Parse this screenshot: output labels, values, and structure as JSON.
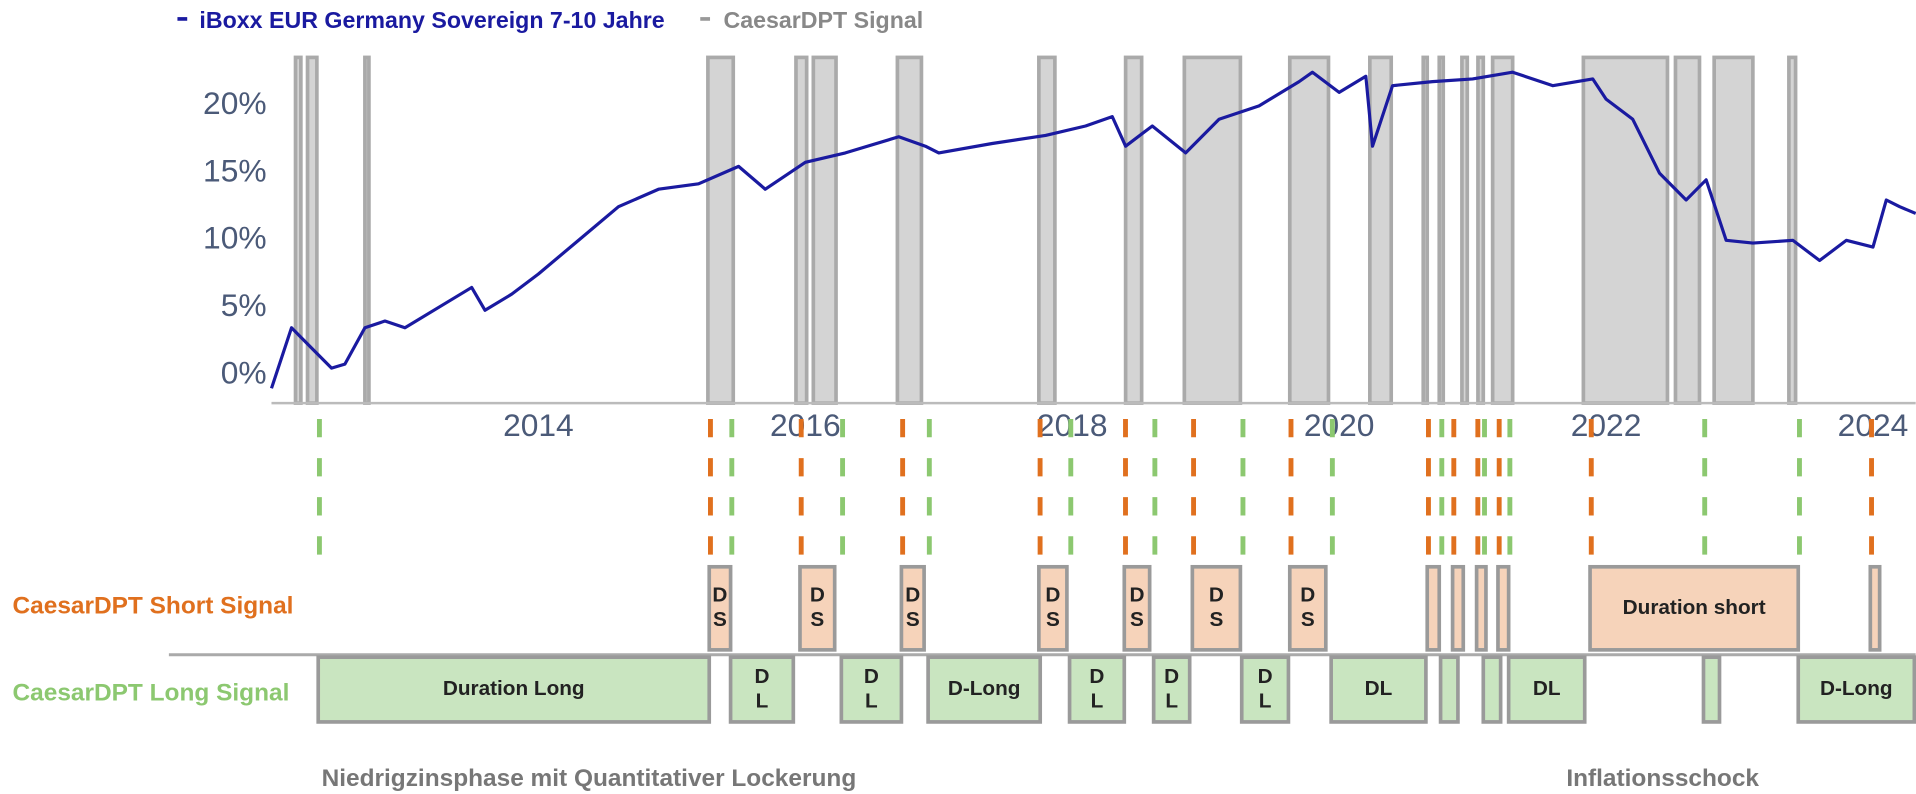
{
  "chart_data": {
    "type": "line",
    "series": [
      {
        "name": "iBoxx EUR Germany Sovereign 7-10 Jahre",
        "color": "#1a1aa0",
        "x": [
          2012.0,
          2012.15,
          2012.3,
          2012.45,
          2012.55,
          2012.7,
          2012.85,
          2013.0,
          2013.3,
          2013.5,
          2013.6,
          2013.8,
          2014.0,
          2014.3,
          2014.6,
          2014.9,
          2015.2,
          2015.5,
          2015.7,
          2016.0,
          2016.3,
          2016.7,
          2016.9,
          2017.0,
          2017.4,
          2017.8,
          2018.1,
          2018.3,
          2018.4,
          2018.6,
          2018.85,
          2019.1,
          2019.4,
          2019.7,
          2019.8,
          2020.0,
          2020.2,
          2020.25,
          2020.4,
          2020.7,
          2021.0,
          2021.3,
          2021.6,
          2021.9,
          2022.0,
          2022.2,
          2022.4,
          2022.6,
          2022.75,
          2022.9,
          2023.1,
          2023.4,
          2023.6,
          2023.8,
          2024.0,
          2024.1,
          2024.2,
          2024.32
        ],
        "values": [
          -1.0,
          3.5,
          2.0,
          0.5,
          0.8,
          3.5,
          4.0,
          3.5,
          5.3,
          6.5,
          4.8,
          6.0,
          7.5,
          10.0,
          12.5,
          13.8,
          14.2,
          15.5,
          13.8,
          15.8,
          16.5,
          17.7,
          17.0,
          16.5,
          17.2,
          17.8,
          18.5,
          19.2,
          17.0,
          18.5,
          16.5,
          19.0,
          20.0,
          21.8,
          22.5,
          21.0,
          22.2,
          17.0,
          21.5,
          21.8,
          22.0,
          22.5,
          21.5,
          22.0,
          20.5,
          19.0,
          15.0,
          13.0,
          14.5,
          10.0,
          9.8,
          10.0,
          8.5,
          10.0,
          9.5,
          13.0,
          12.5,
          12.0
        ]
      }
    ],
    "signal_name": "CaesarDPT Signal",
    "signal_color": "#aaaaaa",
    "signal_periods": [
      [
        2012.18,
        2012.22
      ],
      [
        2012.27,
        2012.34
      ],
      [
        2012.7,
        2012.73
      ],
      [
        2015.27,
        2015.46
      ],
      [
        2015.93,
        2016.01
      ],
      [
        2016.06,
        2016.23
      ],
      [
        2016.69,
        2016.87
      ],
      [
        2017.75,
        2017.87
      ],
      [
        2018.4,
        2018.52
      ],
      [
        2018.84,
        2019.26
      ],
      [
        2019.63,
        2019.92
      ],
      [
        2020.23,
        2020.39
      ],
      [
        2020.63,
        2020.66
      ],
      [
        2020.75,
        2020.78
      ],
      [
        2020.92,
        2020.96
      ],
      [
        2021.04,
        2021.08
      ],
      [
        2021.15,
        2021.3
      ],
      [
        2021.83,
        2022.46
      ],
      [
        2022.52,
        2022.7
      ],
      [
        2022.81,
        2023.1
      ],
      [
        2023.37,
        2023.42
      ]
    ],
    "xlim": [
      2012.0,
      2024.32
    ],
    "xticks": [
      2014,
      2016,
      2018,
      2020,
      2022,
      2024
    ],
    "ylim": [
      -2.1,
      23.6
    ],
    "yticks": [
      {
        "value": 0,
        "label": "0%"
      },
      {
        "value": 5,
        "label": "5%"
      },
      {
        "value": 10,
        "label": "10%"
      },
      {
        "value": 15,
        "label": "15%"
      },
      {
        "value": 20,
        "label": "20%"
      }
    ],
    "short_signal": {
      "name": "CaesarDPT Short Signal",
      "color": "#e0701e",
      "boxes": [
        {
          "start": 2015.28,
          "end": 2015.44,
          "lines": [
            "D",
            "S"
          ]
        },
        {
          "start": 2015.96,
          "end": 2016.22,
          "lines": [
            "D",
            "S"
          ]
        },
        {
          "start": 2016.72,
          "end": 2016.89,
          "lines": [
            "D",
            "S"
          ]
        },
        {
          "start": 2017.75,
          "end": 2017.96,
          "lines": [
            "D",
            "S"
          ]
        },
        {
          "start": 2018.39,
          "end": 2018.58,
          "lines": [
            "D",
            "S"
          ]
        },
        {
          "start": 2018.9,
          "end": 2019.26,
          "lines": [
            "D",
            "S"
          ]
        },
        {
          "start": 2019.63,
          "end": 2019.9,
          "lines": [
            "D",
            "S"
          ]
        },
        {
          "start": 2020.66,
          "end": 2020.75
        },
        {
          "start": 2020.85,
          "end": 2020.93
        },
        {
          "start": 2021.03,
          "end": 2021.1
        },
        {
          "start": 2021.19,
          "end": 2021.27
        },
        {
          "start": 2021.88,
          "end": 2023.44,
          "lines": [
            "Duration short"
          ]
        },
        {
          "start": 2023.98,
          "end": 2024.05
        }
      ]
    },
    "long_signal": {
      "name": "CaesarDPT Long Signal",
      "color": "#8cc870",
      "boxes": [
        {
          "start": 2012.35,
          "end": 2015.28,
          "lines": [
            "Duration Long"
          ]
        },
        {
          "start": 2015.44,
          "end": 2015.91,
          "lines": [
            "D",
            "L"
          ]
        },
        {
          "start": 2016.27,
          "end": 2016.72,
          "lines": [
            "D",
            "L"
          ]
        },
        {
          "start": 2016.92,
          "end": 2017.76,
          "lines": [
            "D-Long"
          ]
        },
        {
          "start": 2017.98,
          "end": 2018.39,
          "lines": [
            "D",
            "L"
          ]
        },
        {
          "start": 2018.61,
          "end": 2018.88,
          "lines": [
            "D",
            "L"
          ]
        },
        {
          "start": 2019.27,
          "end": 2019.62,
          "lines": [
            "D",
            "L"
          ]
        },
        {
          "start": 2019.94,
          "end": 2020.65,
          "lines": [
            "DL"
          ]
        },
        {
          "start": 2020.76,
          "end": 2020.89
        },
        {
          "start": 2021.08,
          "end": 2021.21
        },
        {
          "start": 2021.27,
          "end": 2021.84,
          "lines": [
            "DL"
          ]
        },
        {
          "start": 2022.73,
          "end": 2022.85
        },
        {
          "start": 2023.44,
          "end": 2024.31,
          "lines": [
            "D-Long"
          ]
        }
      ]
    },
    "annotations": [
      "Niedrigzinsphase mit Quantitativer Lockerung",
      "Inflationsschock"
    ]
  }
}
